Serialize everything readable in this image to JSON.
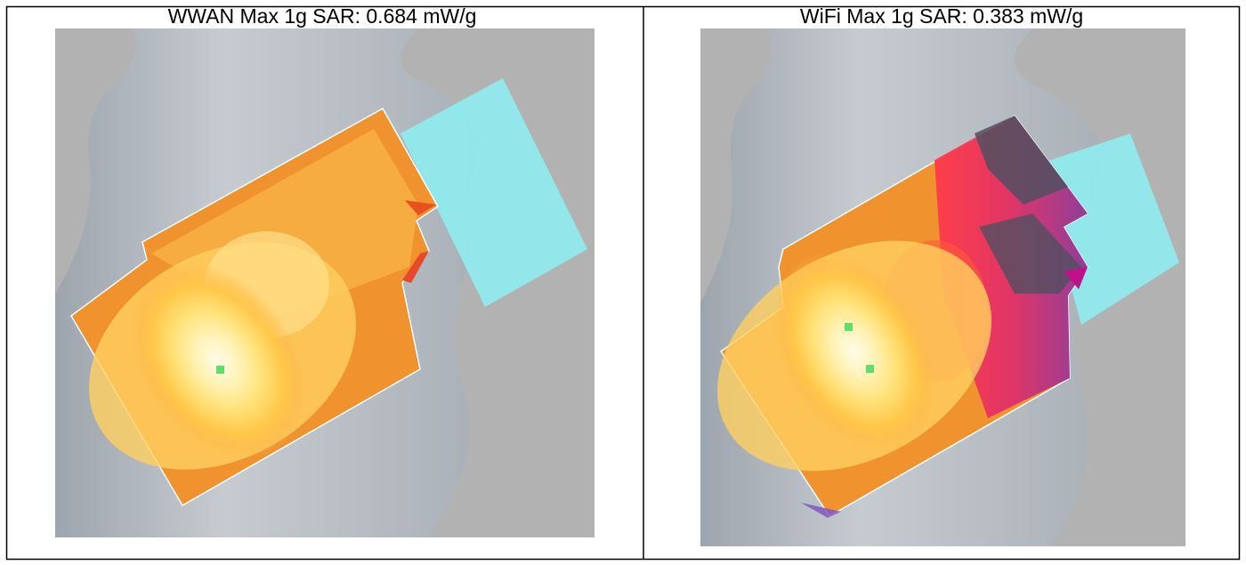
{
  "table": {
    "cells": [
      {
        "caption": "WWAN Max 1g SAR: 0.684 mW/g"
      },
      {
        "caption": "WiFi Max 1g SAR: 0.383 mW/g"
      }
    ]
  }
}
